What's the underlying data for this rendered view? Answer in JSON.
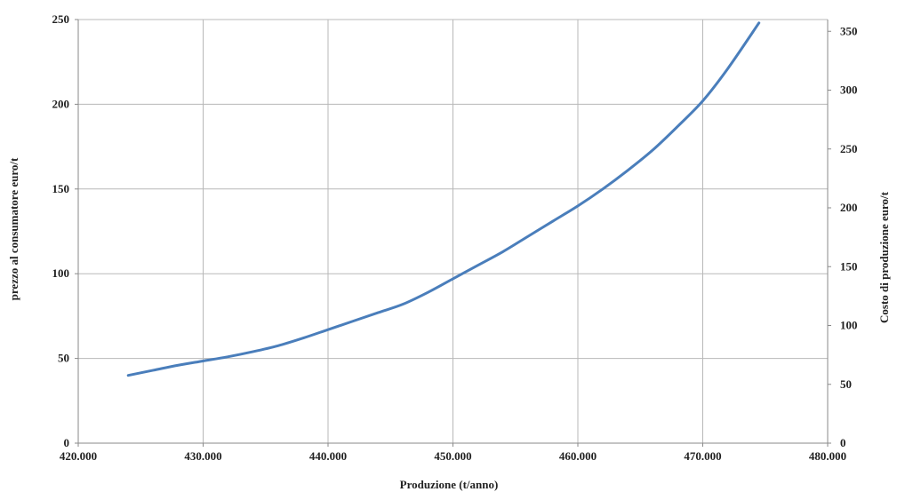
{
  "chart_data": {
    "type": "line",
    "title": "",
    "xlabel": "Produzione (t/anno)",
    "ylabel": "prezzo al consumatore  euro/t",
    "y2label": "Costo di produzione   euro/t",
    "xlim": [
      420000,
      480000
    ],
    "ylim": [
      0,
      250
    ],
    "y2lim": [
      0,
      360
    ],
    "x_ticks": [
      420000,
      430000,
      440000,
      450000,
      460000,
      470000,
      480000
    ],
    "x_tick_labels": [
      "420.000",
      "430.000",
      "440.000",
      "450.000",
      "460.000",
      "470.000",
      "480.000"
    ],
    "y_ticks": [
      0,
      50,
      100,
      150,
      200,
      250
    ],
    "y_tick_labels": [
      "0",
      "50",
      "100",
      "150",
      "200",
      "250"
    ],
    "y2_ticks": [
      0,
      50,
      100,
      150,
      200,
      250,
      300,
      350
    ],
    "y2_tick_labels": [
      "0",
      "50",
      "100",
      "150",
      "200",
      "250",
      "300",
      "350"
    ],
    "grid": true,
    "legend": "none",
    "series": [
      {
        "color": "#4a7ebb",
        "x": [
          424000,
          426000,
          428000,
          430000,
          432000,
          434000,
          436000,
          438000,
          440000,
          442000,
          444000,
          446000,
          448000,
          450000,
          452000,
          454000,
          456000,
          458000,
          460000,
          462000,
          464000,
          466000,
          468000,
          470000,
          472000,
          474500
        ],
        "y": [
          40,
          43,
          46,
          48.5,
          51,
          54,
          57.5,
          62,
          67,
          72,
          77,
          82,
          89,
          97,
          105,
          113,
          122,
          131,
          140,
          150,
          161,
          173,
          187,
          202,
          221,
          248
        ]
      }
    ]
  }
}
